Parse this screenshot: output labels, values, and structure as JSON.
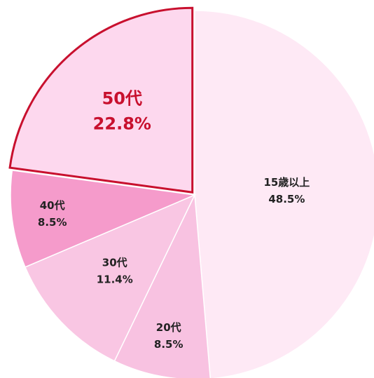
{
  "chart_data": {
    "type": "pie",
    "categories": [
      "15歳以上",
      "20代",
      "30代",
      "40代",
      "50代"
    ],
    "values": [
      48.5,
      8.5,
      11.4,
      8.5,
      22.8
    ],
    "value_labels": [
      "48.5%",
      "8.5%",
      "11.4%",
      "8.5%",
      "22.8%"
    ],
    "colors": [
      "#fee9f5",
      "#f8c2e1",
      "#f9c6e3",
      "#f59bcb",
      "#fdd8ee"
    ],
    "highlight_color": "#c8102e"
  }
}
